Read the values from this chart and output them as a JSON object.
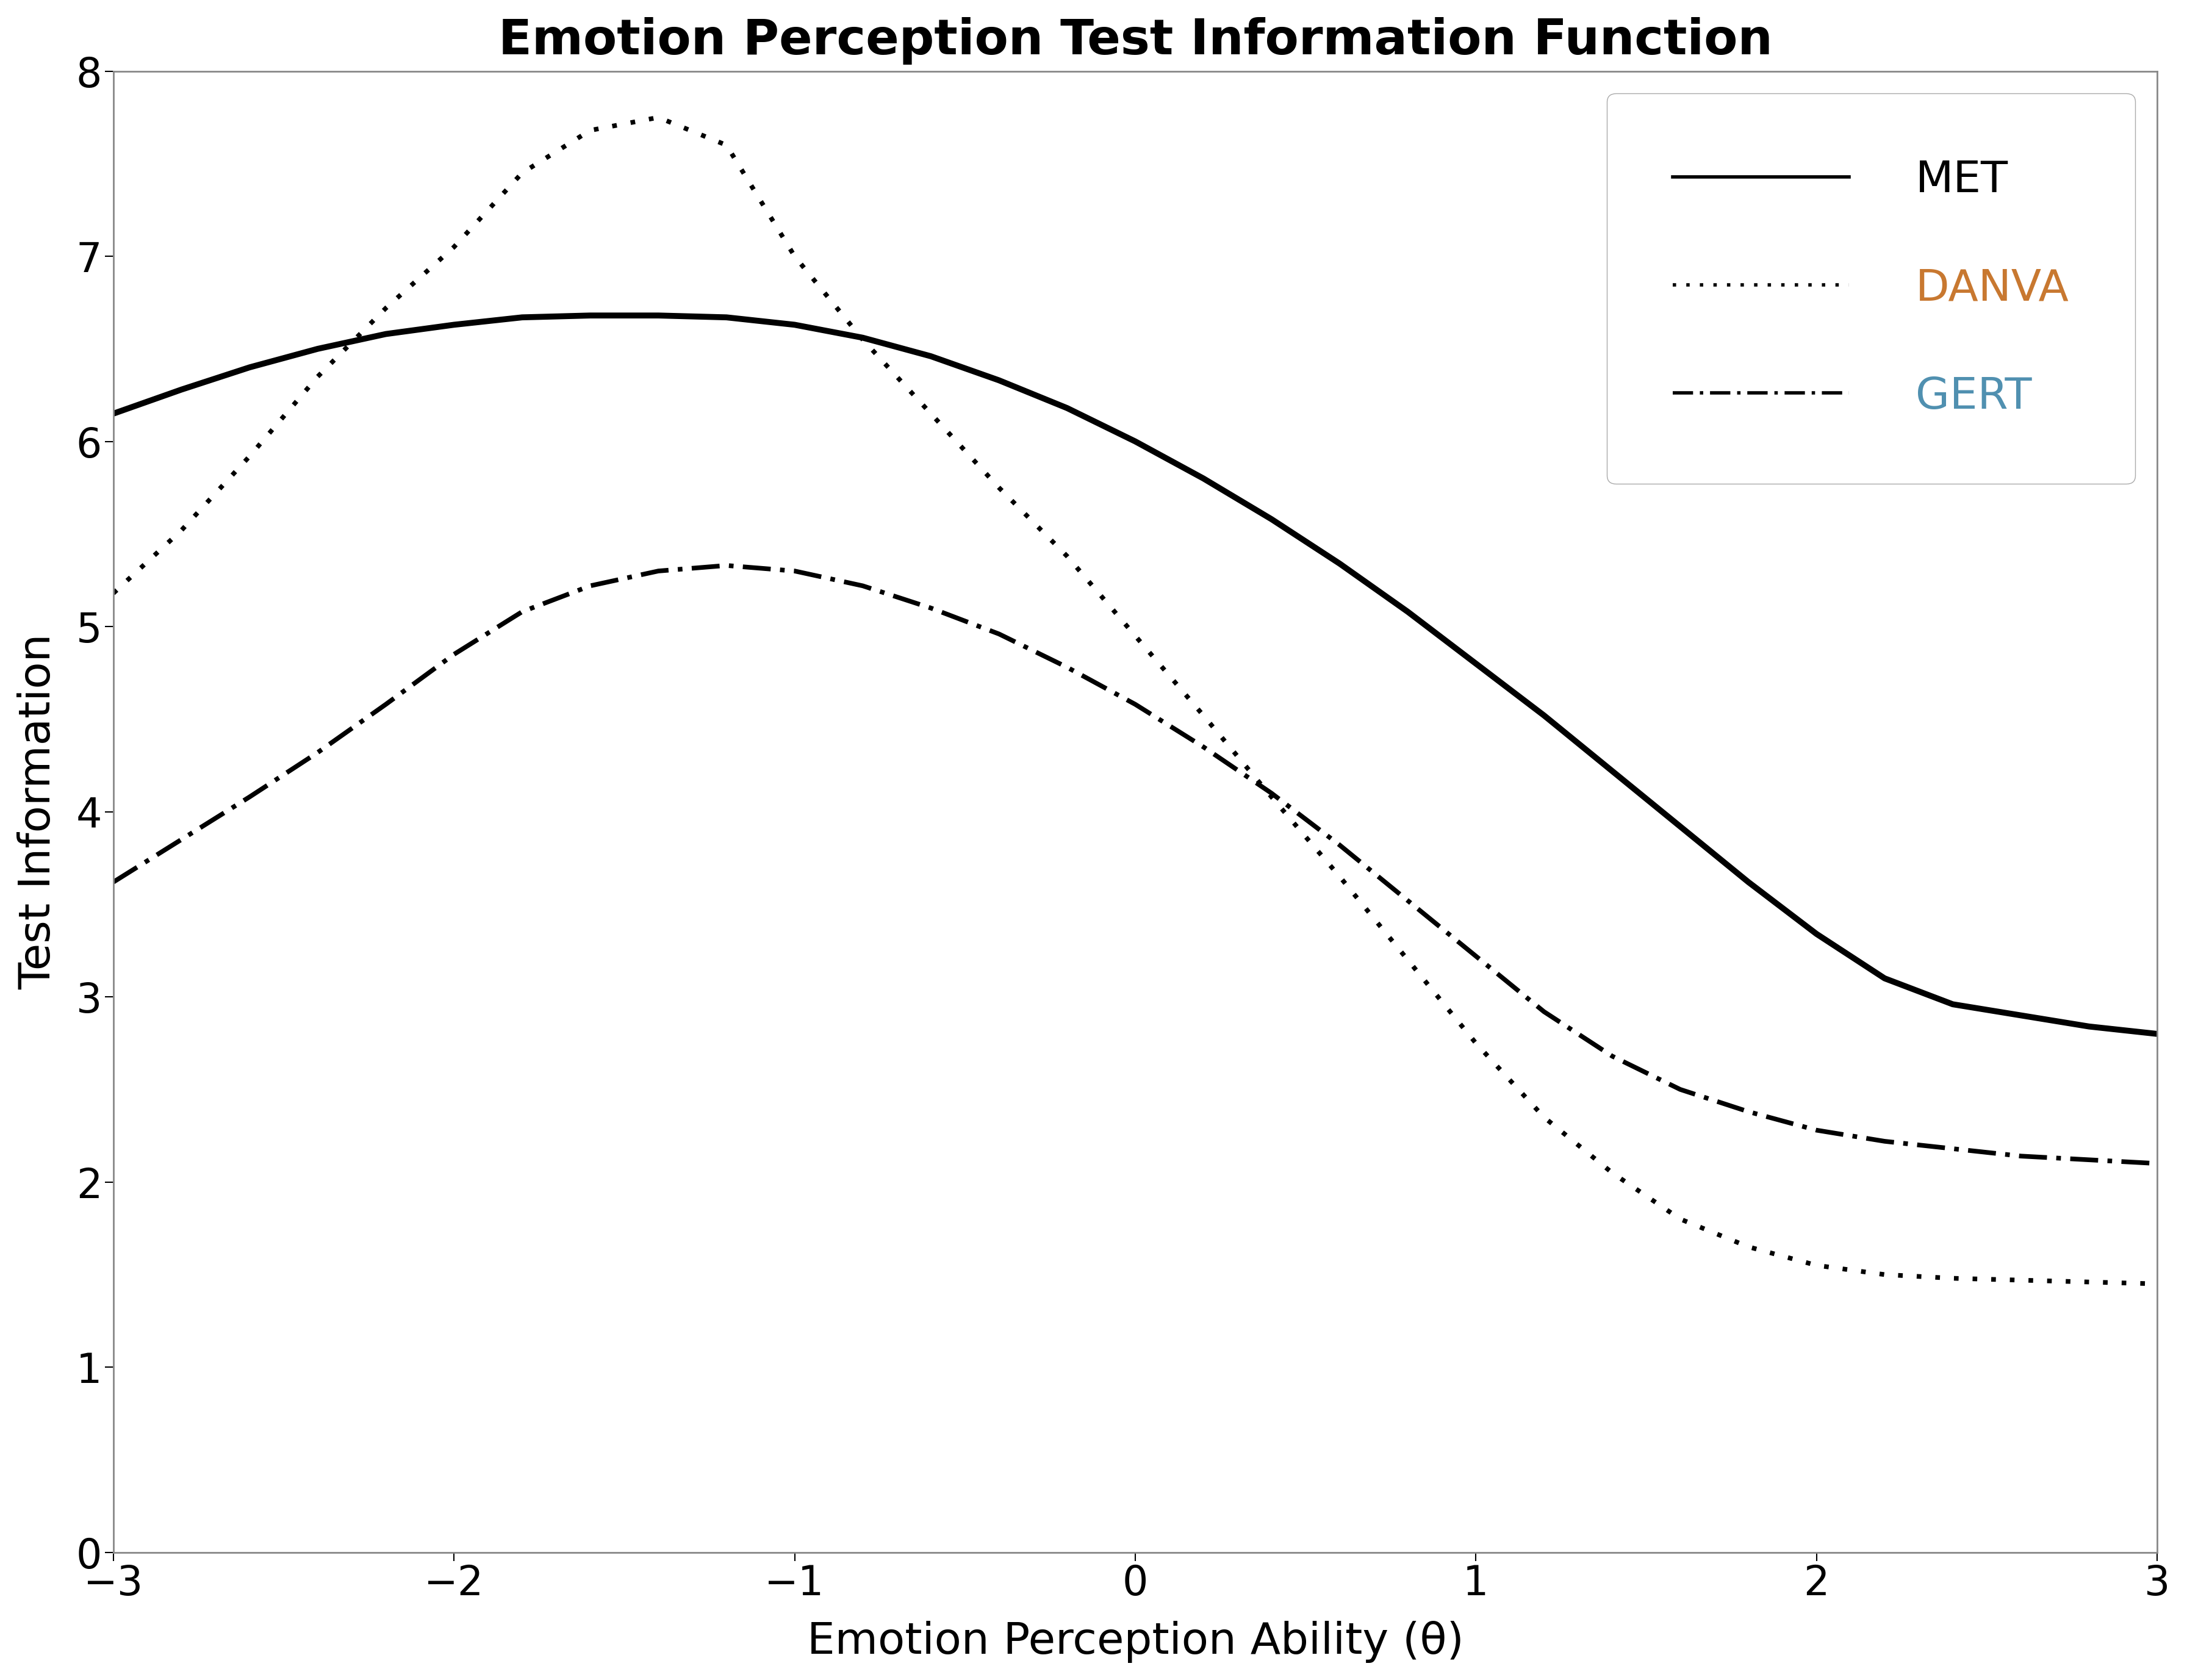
{
  "title": "Emotion Perception Test Information Function",
  "xlabel": "Emotion Perception Ability (θ)",
  "ylabel": "Test Information",
  "xlim": [
    -3,
    3
  ],
  "ylim": [
    0,
    8
  ],
  "xticks": [
    -3,
    -2,
    -1,
    0,
    1,
    2,
    3
  ],
  "yticks": [
    0,
    1,
    2,
    3,
    4,
    5,
    6,
    7,
    8
  ],
  "legend_labels": [
    "MET",
    "DANVA",
    "GERT"
  ],
  "legend_label_colors": [
    "#000000",
    "#c87830",
    "#5090b0"
  ],
  "background_color": "#ffffff",
  "spine_color": "#888888",
  "title_fontsize": 58,
  "label_fontsize": 52,
  "tick_fontsize": 48,
  "legend_fontsize": 52,
  "MET": {
    "x": [
      -3.0,
      -2.8,
      -2.6,
      -2.4,
      -2.2,
      -2.0,
      -1.8,
      -1.6,
      -1.4,
      -1.2,
      -1.0,
      -0.8,
      -0.6,
      -0.4,
      -0.2,
      0.0,
      0.2,
      0.4,
      0.6,
      0.8,
      1.0,
      1.2,
      1.4,
      1.6,
      1.8,
      2.0,
      2.2,
      2.4,
      2.6,
      2.8,
      3.0
    ],
    "y": [
      6.15,
      6.28,
      6.4,
      6.5,
      6.58,
      6.63,
      6.67,
      6.68,
      6.68,
      6.67,
      6.63,
      6.56,
      6.46,
      6.33,
      6.18,
      6.0,
      5.8,
      5.58,
      5.34,
      5.08,
      4.8,
      4.52,
      4.22,
      3.92,
      3.62,
      3.34,
      3.1,
      2.96,
      2.9,
      2.84,
      2.8
    ],
    "color": "#000000",
    "linewidth": 7.0
  },
  "DANVA": {
    "x": [
      -3.0,
      -2.8,
      -2.6,
      -2.4,
      -2.2,
      -2.0,
      -1.8,
      -1.6,
      -1.4,
      -1.2,
      -1.0,
      -0.8,
      -0.6,
      -0.4,
      -0.2,
      0.0,
      0.2,
      0.4,
      0.6,
      0.8,
      1.0,
      1.2,
      1.4,
      1.6,
      1.8,
      2.0,
      2.2,
      2.4,
      2.6,
      2.8,
      3.0
    ],
    "y": [
      5.18,
      5.52,
      5.92,
      6.35,
      6.72,
      7.05,
      7.45,
      7.68,
      7.75,
      7.6,
      7.0,
      6.55,
      6.15,
      5.75,
      5.38,
      4.95,
      4.52,
      4.08,
      3.65,
      3.2,
      2.75,
      2.35,
      2.05,
      1.8,
      1.65,
      1.55,
      1.5,
      1.48,
      1.47,
      1.46,
      1.45
    ],
    "color": "#000000",
    "linewidth": 5.5
  },
  "GERT": {
    "x": [
      -3.0,
      -2.8,
      -2.6,
      -2.4,
      -2.2,
      -2.0,
      -1.8,
      -1.6,
      -1.4,
      -1.2,
      -1.0,
      -0.8,
      -0.6,
      -0.4,
      -0.2,
      0.0,
      0.2,
      0.4,
      0.6,
      0.8,
      1.0,
      1.2,
      1.4,
      1.6,
      1.8,
      2.0,
      2.2,
      2.4,
      2.6,
      2.8,
      3.0
    ],
    "y": [
      3.62,
      3.85,
      4.08,
      4.32,
      4.58,
      4.85,
      5.08,
      5.22,
      5.3,
      5.33,
      5.3,
      5.22,
      5.1,
      4.96,
      4.78,
      4.58,
      4.35,
      4.1,
      3.82,
      3.52,
      3.22,
      2.92,
      2.68,
      2.5,
      2.38,
      2.28,
      2.22,
      2.18,
      2.14,
      2.12,
      2.1
    ],
    "color": "#000000",
    "linewidth": 5.5
  }
}
